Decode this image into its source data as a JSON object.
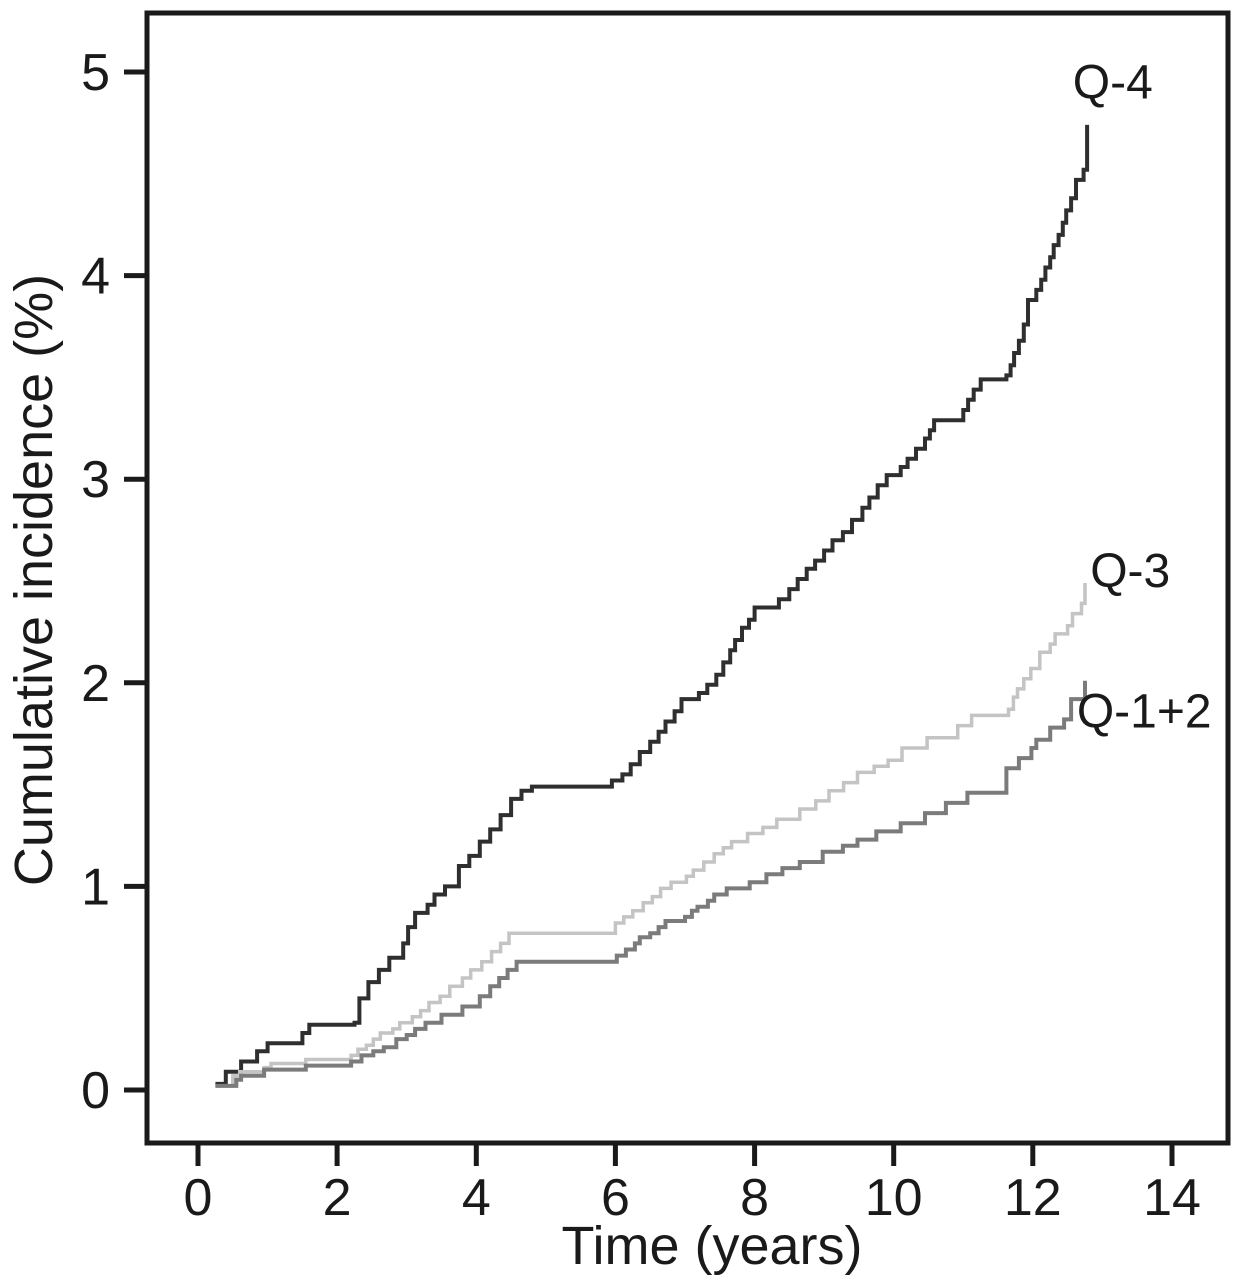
{
  "figure": {
    "background": "#ffffff",
    "axis_color": "#1a1a1a"
  },
  "chart_data": {
    "type": "line",
    "subtype": "step-after-cumulative-incidence",
    "title": "",
    "xlabel": "Time (years)",
    "ylabel": "Cumulative incidence (%)",
    "xlim": [
      0,
      14
    ],
    "ylim": [
      0,
      5
    ],
    "x_ticks": [
      0,
      2,
      4,
      6,
      8,
      10,
      12,
      14
    ],
    "y_ticks": [
      0,
      1,
      2,
      3,
      4,
      5
    ],
    "grid": false,
    "legend_position": "inline-labels-right",
    "series": [
      {
        "name": "Q-4",
        "color": "#2f2f2f",
        "stroke_width": 4,
        "label_anchor": [
          13.15,
          4.87
        ],
        "points": [
          [
            0.25,
            0.03
          ],
          [
            0.4,
            0.09
          ],
          [
            0.62,
            0.14
          ],
          [
            0.85,
            0.19
          ],
          [
            1.0,
            0.23
          ],
          [
            1.5,
            0.28
          ],
          [
            1.6,
            0.32
          ],
          [
            2.25,
            0.33
          ],
          [
            2.32,
            0.45
          ],
          [
            2.45,
            0.53
          ],
          [
            2.6,
            0.59
          ],
          [
            2.75,
            0.65
          ],
          [
            2.95,
            0.72
          ],
          [
            3.02,
            0.8
          ],
          [
            3.12,
            0.87
          ],
          [
            3.3,
            0.91
          ],
          [
            3.4,
            0.96
          ],
          [
            3.55,
            1.0
          ],
          [
            3.75,
            1.1
          ],
          [
            3.9,
            1.15
          ],
          [
            4.05,
            1.22
          ],
          [
            4.2,
            1.28
          ],
          [
            4.35,
            1.35
          ],
          [
            4.5,
            1.43
          ],
          [
            4.65,
            1.47
          ],
          [
            4.8,
            1.49
          ],
          [
            5.95,
            1.52
          ],
          [
            6.1,
            1.55
          ],
          [
            6.22,
            1.6
          ],
          [
            6.35,
            1.66
          ],
          [
            6.5,
            1.71
          ],
          [
            6.62,
            1.76
          ],
          [
            6.72,
            1.81
          ],
          [
            6.85,
            1.86
          ],
          [
            6.95,
            1.92
          ],
          [
            7.2,
            1.95
          ],
          [
            7.32,
            1.99
          ],
          [
            7.45,
            2.04
          ],
          [
            7.55,
            2.1
          ],
          [
            7.65,
            2.16
          ],
          [
            7.72,
            2.21
          ],
          [
            7.82,
            2.27
          ],
          [
            7.92,
            2.31
          ],
          [
            8.0,
            2.37
          ],
          [
            8.35,
            2.41
          ],
          [
            8.5,
            2.46
          ],
          [
            8.62,
            2.51
          ],
          [
            8.75,
            2.56
          ],
          [
            8.87,
            2.6
          ],
          [
            9.0,
            2.65
          ],
          [
            9.12,
            2.7
          ],
          [
            9.27,
            2.74
          ],
          [
            9.4,
            2.8
          ],
          [
            9.55,
            2.86
          ],
          [
            9.65,
            2.91
          ],
          [
            9.77,
            2.97
          ],
          [
            9.9,
            3.02
          ],
          [
            10.1,
            3.06
          ],
          [
            10.2,
            3.1
          ],
          [
            10.32,
            3.15
          ],
          [
            10.45,
            3.2
          ],
          [
            10.52,
            3.24
          ],
          [
            10.58,
            3.29
          ],
          [
            11.0,
            3.34
          ],
          [
            11.07,
            3.39
          ],
          [
            11.15,
            3.44
          ],
          [
            11.25,
            3.49
          ],
          [
            11.62,
            3.51
          ],
          [
            11.68,
            3.56
          ],
          [
            11.73,
            3.62
          ],
          [
            11.8,
            3.68
          ],
          [
            11.87,
            3.76
          ],
          [
            11.93,
            3.88
          ],
          [
            12.05,
            3.93
          ],
          [
            12.12,
            3.98
          ],
          [
            12.18,
            4.04
          ],
          [
            12.25,
            4.09
          ],
          [
            12.3,
            4.15
          ],
          [
            12.37,
            4.2
          ],
          [
            12.43,
            4.26
          ],
          [
            12.48,
            4.32
          ],
          [
            12.55,
            4.38
          ],
          [
            12.62,
            4.47
          ],
          [
            12.73,
            4.52
          ],
          [
            12.78,
            4.74
          ]
        ]
      },
      {
        "name": "Q-3",
        "color": "#c4c4c4",
        "stroke_width": 3.5,
        "label_anchor": [
          13.4,
          2.47
        ],
        "points": [
          [
            0.25,
            0.02
          ],
          [
            0.5,
            0.07
          ],
          [
            0.6,
            0.09
          ],
          [
            0.95,
            0.11
          ],
          [
            1.05,
            0.13
          ],
          [
            1.55,
            0.15
          ],
          [
            2.2,
            0.17
          ],
          [
            2.3,
            0.2
          ],
          [
            2.42,
            0.22
          ],
          [
            2.52,
            0.25
          ],
          [
            2.62,
            0.28
          ],
          [
            2.8,
            0.3
          ],
          [
            2.9,
            0.33
          ],
          [
            3.08,
            0.36
          ],
          [
            3.2,
            0.39
          ],
          [
            3.32,
            0.43
          ],
          [
            3.48,
            0.46
          ],
          [
            3.62,
            0.51
          ],
          [
            3.8,
            0.55
          ],
          [
            3.92,
            0.59
          ],
          [
            4.08,
            0.63
          ],
          [
            4.22,
            0.68
          ],
          [
            4.35,
            0.72
          ],
          [
            4.47,
            0.77
          ],
          [
            6.0,
            0.82
          ],
          [
            6.12,
            0.85
          ],
          [
            6.25,
            0.88
          ],
          [
            6.4,
            0.92
          ],
          [
            6.53,
            0.95
          ],
          [
            6.65,
            0.99
          ],
          [
            6.8,
            1.02
          ],
          [
            7.02,
            1.05
          ],
          [
            7.12,
            1.08
          ],
          [
            7.27,
            1.12
          ],
          [
            7.42,
            1.16
          ],
          [
            7.55,
            1.19
          ],
          [
            7.67,
            1.22
          ],
          [
            7.9,
            1.26
          ],
          [
            8.12,
            1.29
          ],
          [
            8.32,
            1.33
          ],
          [
            8.65,
            1.38
          ],
          [
            8.88,
            1.42
          ],
          [
            9.07,
            1.47
          ],
          [
            9.28,
            1.51
          ],
          [
            9.48,
            1.56
          ],
          [
            9.72,
            1.59
          ],
          [
            9.92,
            1.62
          ],
          [
            10.12,
            1.68
          ],
          [
            10.48,
            1.73
          ],
          [
            10.92,
            1.79
          ],
          [
            11.12,
            1.84
          ],
          [
            11.65,
            1.87
          ],
          [
            11.72,
            1.93
          ],
          [
            11.78,
            1.97
          ],
          [
            11.87,
            2.02
          ],
          [
            11.97,
            2.07
          ],
          [
            12.1,
            2.15
          ],
          [
            12.25,
            2.19
          ],
          [
            12.32,
            2.24
          ],
          [
            12.5,
            2.28
          ],
          [
            12.57,
            2.34
          ],
          [
            12.7,
            2.39
          ],
          [
            12.75,
            2.49
          ]
        ]
      },
      {
        "name": "Q-1+2",
        "color": "#7b7b7b",
        "stroke_width": 4,
        "label_anchor": [
          13.6,
          1.78
        ],
        "points": [
          [
            0.25,
            0.02
          ],
          [
            0.55,
            0.05
          ],
          [
            0.62,
            0.07
          ],
          [
            0.95,
            0.1
          ],
          [
            1.55,
            0.12
          ],
          [
            2.2,
            0.14
          ],
          [
            2.35,
            0.17
          ],
          [
            2.52,
            0.19
          ],
          [
            2.67,
            0.21
          ],
          [
            2.85,
            0.25
          ],
          [
            3.0,
            0.27
          ],
          [
            3.12,
            0.3
          ],
          [
            3.27,
            0.33
          ],
          [
            3.5,
            0.37
          ],
          [
            3.8,
            0.41
          ],
          [
            4.05,
            0.46
          ],
          [
            4.2,
            0.51
          ],
          [
            4.33,
            0.55
          ],
          [
            4.45,
            0.59
          ],
          [
            4.58,
            0.63
          ],
          [
            6.02,
            0.66
          ],
          [
            6.15,
            0.69
          ],
          [
            6.28,
            0.72
          ],
          [
            6.35,
            0.75
          ],
          [
            6.5,
            0.77
          ],
          [
            6.62,
            0.8
          ],
          [
            6.72,
            0.83
          ],
          [
            7.0,
            0.85
          ],
          [
            7.1,
            0.88
          ],
          [
            7.18,
            0.9
          ],
          [
            7.33,
            0.93
          ],
          [
            7.42,
            0.96
          ],
          [
            7.6,
            0.99
          ],
          [
            7.93,
            1.02
          ],
          [
            8.17,
            1.06
          ],
          [
            8.4,
            1.09
          ],
          [
            8.65,
            1.12
          ],
          [
            8.98,
            1.17
          ],
          [
            9.27,
            1.2
          ],
          [
            9.48,
            1.23
          ],
          [
            9.75,
            1.27
          ],
          [
            10.1,
            1.31
          ],
          [
            10.45,
            1.36
          ],
          [
            10.75,
            1.41
          ],
          [
            11.06,
            1.46
          ],
          [
            11.62,
            1.58
          ],
          [
            11.8,
            1.63
          ],
          [
            11.98,
            1.68
          ],
          [
            12.05,
            1.72
          ],
          [
            12.25,
            1.78
          ],
          [
            12.45,
            1.82
          ],
          [
            12.55,
            1.92
          ],
          [
            12.75,
            2.01
          ]
        ]
      }
    ]
  }
}
